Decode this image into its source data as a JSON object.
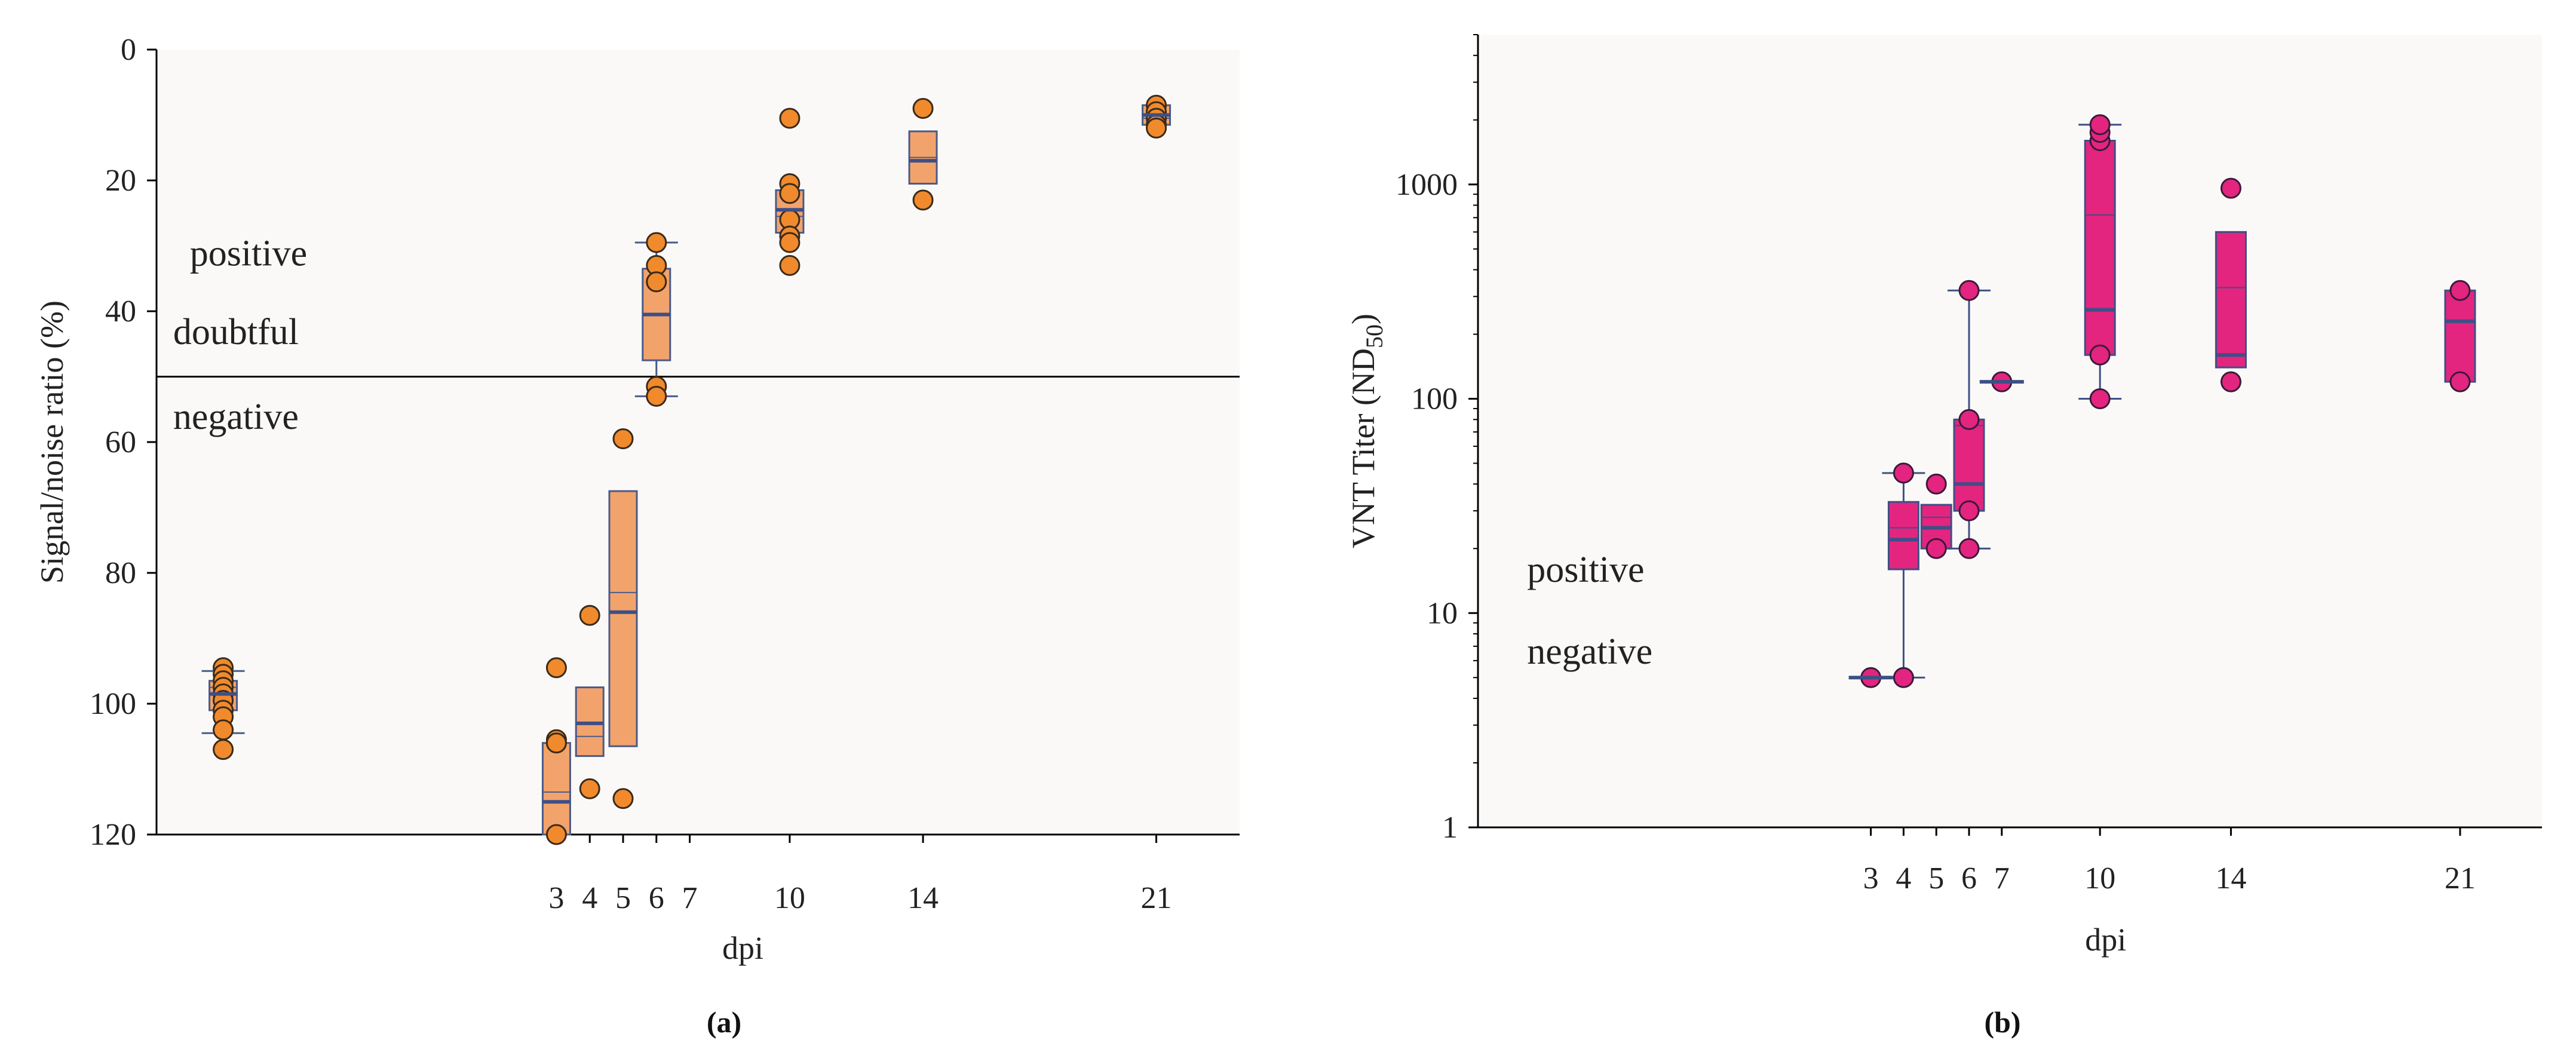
{
  "chart_data": [
    {
      "id": "a",
      "type": "box",
      "panel_label": "(a)",
      "xlabel": "dpi",
      "ylabel": "Signal/noise ratio (%)",
      "y_axis_inverted": true,
      "ylim": [
        0,
        120
      ],
      "yticks": [
        0,
        20,
        40,
        60,
        80,
        100,
        120
      ],
      "xlim": [
        -9,
        23.5
      ],
      "xtick_values": [
        3,
        4,
        5,
        6,
        7,
        10,
        14,
        21
      ],
      "xtick_labels": [
        "3",
        "4",
        "5",
        "6",
        "7",
        "10",
        "14",
        "21"
      ],
      "threshold_line": 50,
      "region_labels": [
        {
          "text": "positive",
          "x": -8,
          "y": 33
        },
        {
          "text": "doubtful",
          "x": -8.5,
          "y": 45
        },
        {
          "text": "negative",
          "x": -8.5,
          "y": 58
        }
      ],
      "colors": {
        "box_fill": "#f2a36c",
        "box_edge": "#4a5a8a",
        "point_fill": "#f08a2c",
        "point_edge": "#3a2a1a",
        "median": "#3e4f86"
      },
      "groups": [
        {
          "x": -7,
          "q1": 96.5,
          "q3": 101,
          "median": 98.5,
          "mean": 97.5,
          "whisker_low": 95,
          "whisker_high": 104.5,
          "points": [
            94.5,
            95.5,
            96.5,
            97.5,
            98.5,
            99.5,
            101,
            102,
            104,
            107
          ]
        },
        {
          "x": 3,
          "q1": 106,
          "q3": 120,
          "median": 115,
          "mean": 113.5,
          "whisker_low": null,
          "whisker_high": null,
          "points": [
            94.5,
            105.5,
            106,
            120
          ]
        },
        {
          "x": 4,
          "q1": 97.5,
          "q3": 108,
          "median": 103,
          "mean": 105,
          "whisker_low": null,
          "whisker_high": null,
          "points": [
            86.5,
            113
          ]
        },
        {
          "x": 5,
          "q1": 67.5,
          "q3": 106.5,
          "median": 86,
          "mean": 83,
          "whisker_low": null,
          "whisker_high": null,
          "points": [
            59.5,
            114.5
          ]
        },
        {
          "x": 6,
          "q1": 33.5,
          "q3": 47.5,
          "median": 40.5,
          "mean": 40.5,
          "whisker_low": 29.5,
          "whisker_high": 53,
          "points": [
            29.5,
            33,
            35.5,
            51.5,
            53
          ]
        },
        {
          "x": 10,
          "q1": 21.5,
          "q3": 28,
          "median": 24.5,
          "mean": 25.5,
          "whisker_low": null,
          "whisker_high": null,
          "points": [
            10.5,
            20.5,
            22,
            26,
            28.5,
            29.5,
            33
          ]
        },
        {
          "x": 14,
          "q1": 12.5,
          "q3": 20.5,
          "median": 17,
          "mean": 16.5,
          "whisker_low": null,
          "whisker_high": null,
          "points": [
            9,
            23
          ]
        },
        {
          "x": 21,
          "q1": 8.5,
          "q3": 11.5,
          "median": 10,
          "mean": 10.5,
          "whisker_low": null,
          "whisker_high": null,
          "points": [
            8.5,
            9.5,
            10.5,
            11.5,
            12
          ]
        }
      ]
    },
    {
      "id": "b",
      "type": "box",
      "panel_label": "(b)",
      "xlabel": "dpi",
      "ylabel_main": "VNT Titer (ND",
      "ylabel_sub": "50",
      "ylabel_end": ")",
      "y_scale": "log",
      "ylim": [
        1,
        5000
      ],
      "yticks": [
        1,
        10,
        100,
        1000
      ],
      "ytick_labels": [
        "1",
        "10",
        "100",
        "1000"
      ],
      "xlim": [
        -9,
        23.5
      ],
      "xtick_values": [
        3,
        4,
        5,
        6,
        7,
        10,
        14,
        21
      ],
      "xtick_labels": [
        "3",
        "4",
        "5",
        "6",
        "7",
        "10",
        "14",
        "21"
      ],
      "region_labels": [
        {
          "text": "positive",
          "x": -7.5,
          "y": 14
        },
        {
          "text": "negative",
          "x": -7.5,
          "y": 5.8
        }
      ],
      "colors": {
        "box_fill": "#e3257f",
        "box_edge": "#3e4f86",
        "point_fill": "#e3257f",
        "point_edge": "#3a1a3a",
        "median": "#3e4f86"
      },
      "groups": [
        {
          "x": 3,
          "q1": null,
          "q3": null,
          "median": 5,
          "mean": null,
          "whisker_low": null,
          "whisker_high": null,
          "points": [
            5
          ]
        },
        {
          "x": 4,
          "q1": 16,
          "q3": 33,
          "median": 22,
          "mean": 25,
          "whisker_low": 5,
          "whisker_high": 45,
          "points": [
            5,
            45
          ]
        },
        {
          "x": 5,
          "q1": 20,
          "q3": 32,
          "median": 25,
          "mean": 28,
          "whisker_low": null,
          "whisker_high": null,
          "points": [
            20,
            40
          ]
        },
        {
          "x": 6,
          "q1": 30,
          "q3": 80,
          "median": 40,
          "mean": 75,
          "whisker_low": 20,
          "whisker_high": 320,
          "points": [
            20,
            30,
            80,
            320
          ]
        },
        {
          "x": 7,
          "q1": null,
          "q3": null,
          "median": 120,
          "mean": null,
          "whisker_low": null,
          "whisker_high": null,
          "points": [
            120
          ]
        },
        {
          "x": 10,
          "q1": 160,
          "q3": 1600,
          "median": 260,
          "mean": 720,
          "whisker_low": 100,
          "whisker_high": 1900,
          "points": [
            100,
            160,
            1600,
            1750,
            1900
          ]
        },
        {
          "x": 14,
          "q1": 140,
          "q3": 600,
          "median": 160,
          "mean": 330,
          "whisker_low": null,
          "whisker_high": null,
          "points": [
            120,
            960
          ]
        },
        {
          "x": 21,
          "q1": 120,
          "q3": 320,
          "median": 230,
          "mean": 230,
          "whisker_low": null,
          "whisker_high": null,
          "points": [
            120,
            320
          ]
        }
      ]
    }
  ]
}
